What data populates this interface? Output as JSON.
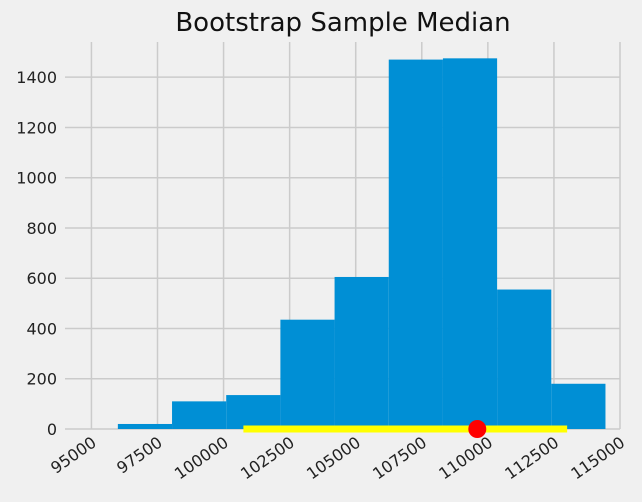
{
  "chart_data": {
    "type": "bar",
    "title": "Bootstrap Sample Median",
    "xlabel": "",
    "ylabel": "",
    "xlim": [
      94000,
      115000
    ],
    "ylim": [
      0,
      1540
    ],
    "x_ticks": [
      95000,
      97500,
      100000,
      102500,
      105000,
      107500,
      110000,
      112500,
      115000
    ],
    "y_ticks": [
      0,
      200,
      400,
      600,
      800,
      1000,
      1200,
      1400
    ],
    "bins": [
      {
        "start": 96000,
        "end": 98050,
        "count": 20
      },
      {
        "start": 98050,
        "end": 100100,
        "count": 110
      },
      {
        "start": 100100,
        "end": 102150,
        "count": 135
      },
      {
        "start": 102150,
        "end": 104200,
        "count": 435
      },
      {
        "start": 104200,
        "end": 106250,
        "count": 605
      },
      {
        "start": 106250,
        "end": 108300,
        "count": 1470
      },
      {
        "start": 108300,
        "end": 110350,
        "count": 1475
      },
      {
        "start": 110350,
        "end": 112400,
        "count": 555
      },
      {
        "start": 112400,
        "end": 114450,
        "count": 180
      }
    ],
    "interval": {
      "start": 100750,
      "end": 113000,
      "y": 0,
      "color": "#ffff00"
    },
    "marker": {
      "x": 109600,
      "y": 0,
      "color": "#ff0000"
    },
    "bar_color": "#008fd5",
    "background_color": "#f0f0f0",
    "grid_color": "#cbcbcb",
    "grid": true
  }
}
